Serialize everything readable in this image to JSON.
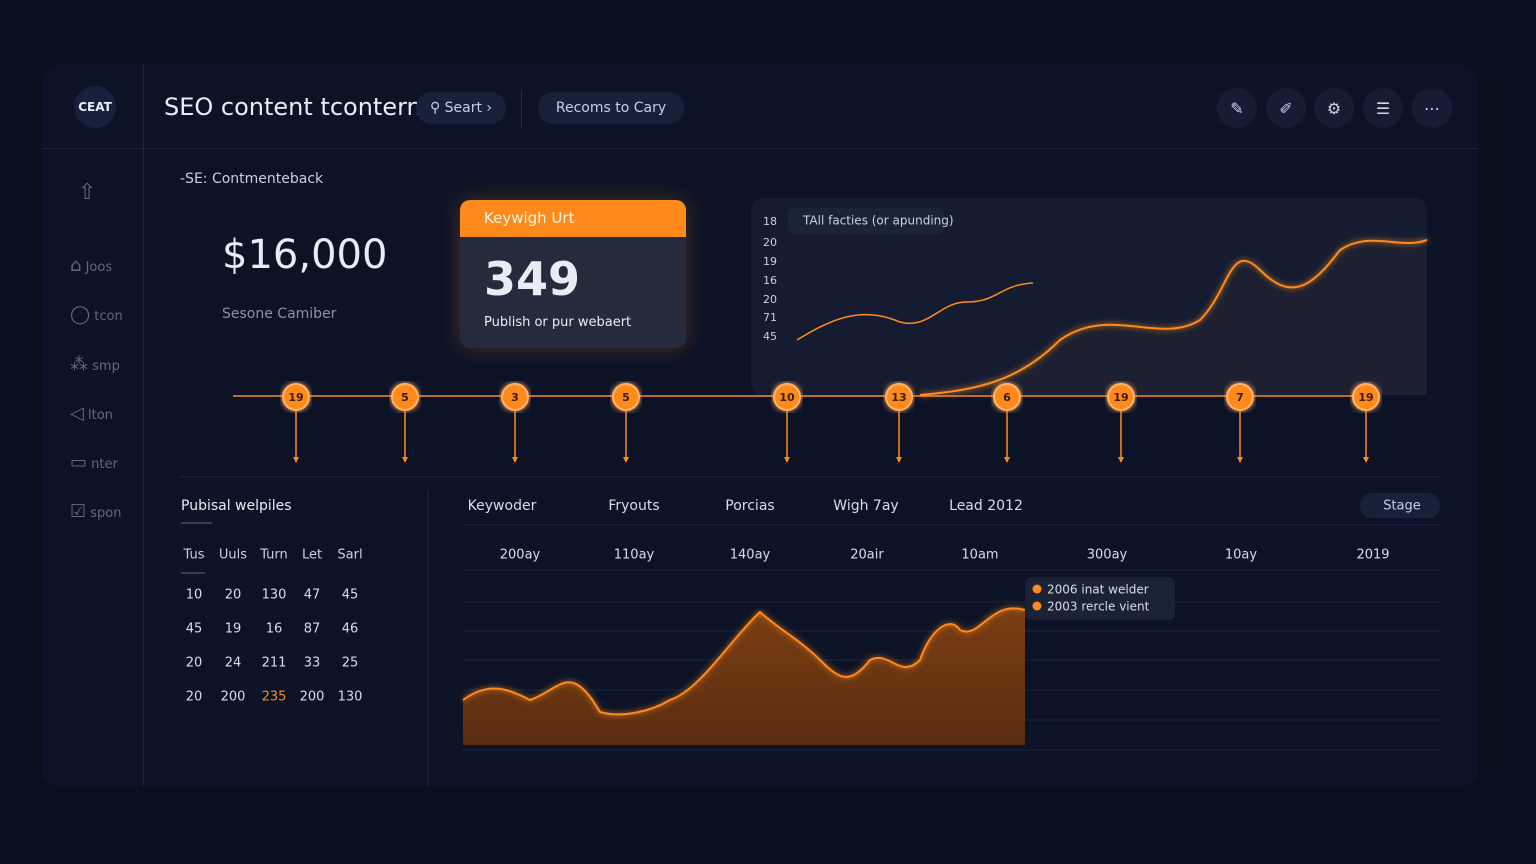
{
  "header": {
    "logo": "CEAT",
    "title": "SEO content tconterm",
    "search": "Seart",
    "button": "Recoms to Cary"
  },
  "sidebar": {
    "items": [
      "Joos",
      "tcon",
      "smp",
      "lton",
      "nter",
      "spon"
    ]
  },
  "overview": {
    "section": "-SE: Contmenteback",
    "amount": "$16,000",
    "amount_label": "Sesone Camiber"
  },
  "card": {
    "title": "Keywigh Urt",
    "value": "349",
    "caption": "Publish or pur webaert"
  },
  "trend": {
    "title": "TAll facties (or apunding)",
    "axis_labels": [
      "18",
      "20",
      "19",
      "16",
      "20",
      "71",
      "45"
    ]
  },
  "timeline": {
    "nodes": [
      "19",
      "5",
      "3",
      "5",
      "10",
      "13",
      "6",
      "19",
      "7",
      "19"
    ]
  },
  "table": {
    "title": "Pubisal welpiles",
    "headers": [
      "Tus",
      "Uuls",
      "Turn",
      "Let",
      "Sarl"
    ],
    "rows": [
      [
        "10",
        "20",
        "130",
        "47",
        "45"
      ],
      [
        "45",
        "19",
        "16",
        "87",
        "46"
      ],
      [
        "20",
        "24",
        "211",
        "33",
        "25"
      ],
      [
        "20",
        "200",
        "235",
        "200",
        "130"
      ]
    ]
  },
  "traffic": {
    "tabs": [
      "Keywoder",
      "Fryouts",
      "Porcias",
      "Wigh 7ay",
      "Lead 2012"
    ],
    "dropdown": "Stage",
    "columns": [
      "200ay",
      "110ay",
      "140ay",
      "20air",
      "10am",
      "300ay",
      "10ay",
      "2019"
    ],
    "legend": [
      "2006 inat welder",
      "2003 rercle vient"
    ]
  }
}
